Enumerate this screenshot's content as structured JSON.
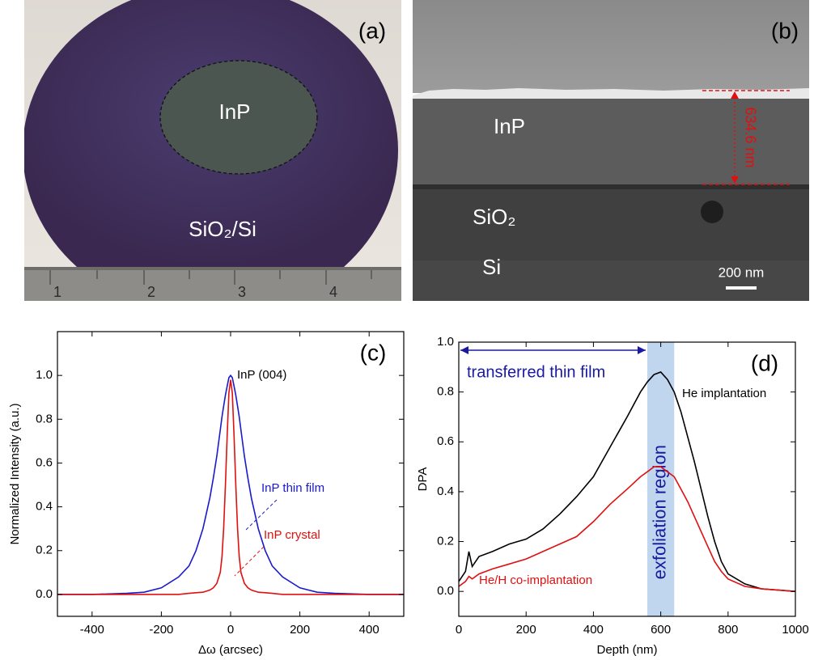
{
  "photo_a": {
    "panel_label": "(a)",
    "labels": [
      "InP",
      "SiO₂/Si"
    ],
    "ruler_numbers": [
      "1",
      "2",
      "3",
      "4"
    ]
  },
  "photo_b": {
    "panel_label": "(b)",
    "labels": [
      "InP",
      "SiO₂",
      "Si"
    ],
    "thickness": "634.6 nm",
    "scale_bar": "200 nm"
  },
  "chart_data": [
    {
      "type": "line",
      "panel_label": "(c)",
      "xlabel": "Δω (arcsec)",
      "ylabel": "Normalized Intensity (a.u.)",
      "annotations": [
        "InP (004)"
      ],
      "x": [
        -500,
        -400,
        -300,
        -250,
        -200,
        -150,
        -120,
        -100,
        -80,
        -60,
        -50,
        -40,
        -30,
        -25,
        -20,
        -15,
        -10,
        -5,
        0,
        5,
        10,
        15,
        20,
        25,
        30,
        40,
        50,
        60,
        80,
        100,
        120,
        150,
        200,
        250,
        300,
        400,
        500
      ],
      "series": [
        {
          "name": "InP thin film",
          "color": "#1a1acc",
          "values": [
            0,
            0,
            0.005,
            0.01,
            0.03,
            0.08,
            0.13,
            0.2,
            0.3,
            0.44,
            0.53,
            0.63,
            0.75,
            0.81,
            0.86,
            0.91,
            0.95,
            0.99,
            1.0,
            0.99,
            0.95,
            0.91,
            0.86,
            0.81,
            0.75,
            0.63,
            0.53,
            0.44,
            0.3,
            0.2,
            0.13,
            0.08,
            0.03,
            0.01,
            0.005,
            0,
            0
          ]
        },
        {
          "name": "InP crystal",
          "color": "#e01010",
          "values": [
            0,
            0,
            0,
            0,
            0,
            0,
            0.005,
            0.008,
            0.01,
            0.02,
            0.03,
            0.05,
            0.1,
            0.17,
            0.3,
            0.5,
            0.72,
            0.92,
            0.98,
            0.92,
            0.72,
            0.5,
            0.3,
            0.17,
            0.1,
            0.05,
            0.03,
            0.02,
            0.01,
            0.008,
            0.005,
            0,
            0,
            0,
            0,
            0,
            0
          ]
        }
      ],
      "xlim": [
        -500,
        500
      ],
      "xticks": [
        -400,
        -200,
        0,
        200,
        400
      ],
      "ylim": [
        -0.1,
        1.2
      ],
      "yticks": [
        {
          "value": 0,
          "label": "0.0"
        },
        0.2,
        0.4,
        0.6,
        0.8,
        {
          "value": 1,
          "label": "1.0"
        }
      ]
    },
    {
      "type": "line",
      "panel_label": "(d)",
      "xlabel": "Depth (nm)",
      "ylabel": "DPA",
      "shaded_region": {
        "label": "exfoliation region",
        "x": [
          560,
          640
        ]
      },
      "span": {
        "label": "transferred thin film",
        "x": [
          0,
          560
        ]
      },
      "x": [
        0,
        20,
        30,
        40,
        60,
        100,
        150,
        200,
        250,
        300,
        350,
        400,
        450,
        500,
        540,
        560,
        580,
        600,
        620,
        640,
        660,
        680,
        700,
        720,
        740,
        760,
        780,
        800,
        850,
        900,
        950,
        1000
      ],
      "series": [
        {
          "name": "He implantation",
          "color": "#000000",
          "values": [
            0.04,
            0.08,
            0.16,
            0.1,
            0.14,
            0.16,
            0.19,
            0.21,
            0.25,
            0.31,
            0.38,
            0.46,
            0.58,
            0.7,
            0.8,
            0.84,
            0.87,
            0.88,
            0.85,
            0.8,
            0.72,
            0.62,
            0.52,
            0.41,
            0.3,
            0.2,
            0.12,
            0.07,
            0.03,
            0.01,
            0.005,
            0
          ]
        },
        {
          "name": "He/H co-implantation",
          "color": "#e01010",
          "values": [
            0.02,
            0.04,
            0.06,
            0.05,
            0.07,
            0.09,
            0.11,
            0.13,
            0.16,
            0.19,
            0.22,
            0.28,
            0.35,
            0.41,
            0.46,
            0.48,
            0.5,
            0.5,
            0.48,
            0.46,
            0.41,
            0.36,
            0.3,
            0.24,
            0.18,
            0.12,
            0.08,
            0.05,
            0.02,
            0.01,
            0.005,
            0
          ]
        }
      ],
      "xlim": [
        0,
        1000
      ],
      "xticks": [
        0,
        200,
        400,
        600,
        800,
        1000
      ],
      "ylim": [
        -0.1,
        1.0
      ],
      "yticks": [
        {
          "value": 0,
          "label": "0.0"
        },
        0.2,
        0.4,
        0.6,
        0.8,
        {
          "value": 1,
          "label": "1.0"
        }
      ]
    }
  ]
}
